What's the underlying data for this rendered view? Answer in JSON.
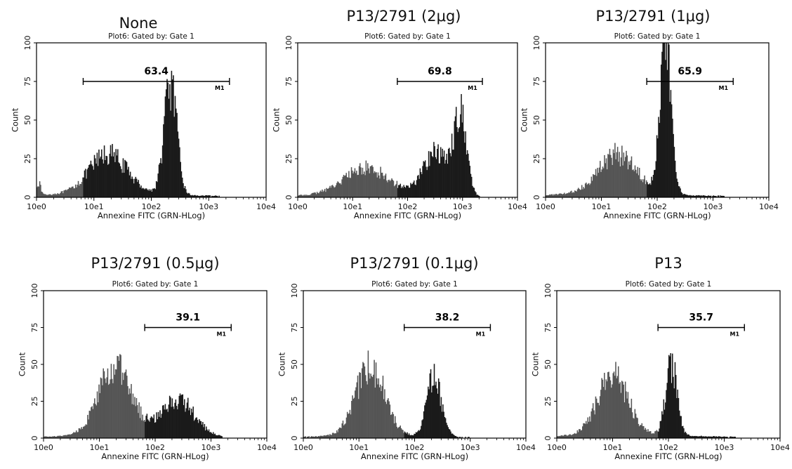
{
  "figure": {
    "colors": {
      "ungated": "#555555",
      "gated": "#1a1a1a",
      "axis": "#000000",
      "background": "#ffffff"
    }
  },
  "chart_data": [
    {
      "type": "histogram",
      "title": "None",
      "subtitle": "Plot6:  Gated by: Gate 1",
      "xlabel": "Annexine FITC (GRN-HLog)",
      "ylabel": "Count",
      "x_scale": "log10",
      "xlim": [
        1,
        10000
      ],
      "ylim": [
        0,
        100
      ],
      "xticks": [
        "10e0",
        "10e1",
        "10e2",
        "10e3",
        "10e4"
      ],
      "yticks": [
        "0",
        "25",
        "50",
        "75",
        "100"
      ],
      "gate": {
        "name": "M1",
        "range": [
          6.5,
          2300
        ],
        "percent": "63.4"
      },
      "peaks": [
        {
          "center_log10": 0.03,
          "width_log10": 0.04,
          "height": 8
        },
        {
          "center_log10": 1.25,
          "width_log10": 0.33,
          "height": 25
        },
        {
          "center_log10": 2.33,
          "width_log10": 0.11,
          "height": 72
        }
      ],
      "baseline": 3
    },
    {
      "type": "histogram",
      "title": "P13/2791 (2μg)",
      "subtitle": "Plot6:  Gated by: Gate 1",
      "xlabel": "Annexine FITC (GRN-HLog)",
      "ylabel": "Count",
      "x_scale": "log10",
      "xlim": [
        1,
        10000
      ],
      "ylim": [
        0,
        100
      ],
      "xticks": [
        "10e0",
        "10e1",
        "10e2",
        "10e3",
        "10e4"
      ],
      "yticks": [
        "0",
        "25",
        "50",
        "75",
        "100"
      ],
      "gate": {
        "name": "M1",
        "range": [
          65,
          2300
        ],
        "percent": "69.8"
      },
      "peaks": [
        {
          "center_log10": 1.25,
          "width_log10": 0.42,
          "height": 17
        },
        {
          "center_log10": 2.5,
          "width_log10": 0.22,
          "height": 28
        },
        {
          "center_log10": 2.95,
          "width_log10": 0.12,
          "height": 52
        }
      ],
      "baseline": 2
    },
    {
      "type": "histogram",
      "title": "P13/2791 (1μg)",
      "subtitle": "Plot6:  Gated by: Gate 1",
      "xlabel": "Annexine FITC (GRN-HLog)",
      "ylabel": "Count",
      "x_scale": "log10",
      "xlim": [
        1,
        10000
      ],
      "ylim": [
        0,
        100
      ],
      "xticks": [
        "10e0",
        "10e1",
        "10e2",
        "10e3",
        "10e4"
      ],
      "yticks": [
        "0",
        "25",
        "50",
        "75",
        "100"
      ],
      "gate": {
        "name": "M1",
        "range": [
          65,
          2300
        ],
        "percent": "65.9"
      },
      "peaks": [
        {
          "center_log10": 1.3,
          "width_log10": 0.35,
          "height": 25
        },
        {
          "center_log10": 2.15,
          "width_log10": 0.1,
          "height": 97
        }
      ],
      "baseline": 3
    },
    {
      "type": "histogram",
      "title": "P13/2791 (0.5μg)",
      "subtitle": "Plot6:  Gated by: Gate 1",
      "xlabel": "Annexine FITC (GRN-HLog)",
      "ylabel": "Count",
      "x_scale": "log10",
      "xlim": [
        1,
        10000
      ],
      "ylim": [
        0,
        100
      ],
      "xticks": [
        "10e0",
        "10e1",
        "10e2",
        "10e3",
        "10e4"
      ],
      "yticks": [
        "0",
        "25",
        "50",
        "75",
        "100"
      ],
      "gate": {
        "name": "M1",
        "range": [
          65,
          2300
        ],
        "percent": "39.1"
      },
      "peaks": [
        {
          "center_log10": 1.28,
          "width_log10": 0.3,
          "height": 45
        },
        {
          "center_log10": 2.4,
          "width_log10": 0.3,
          "height": 25
        }
      ],
      "baseline": 2
    },
    {
      "type": "histogram",
      "title": "P13/2791 (0.1μg)",
      "subtitle": "Plot6:  Gated by: Gate 1",
      "xlabel": "Annexine FITC (GRN-HLog)",
      "ylabel": "Count",
      "x_scale": "log10",
      "xlim": [
        1,
        10000
      ],
      "ylim": [
        0,
        100
      ],
      "xticks": [
        "10e0",
        "10e1",
        "10e2",
        "10e3",
        "10e4"
      ],
      "yticks": [
        "0",
        "25",
        "50",
        "75",
        "100"
      ],
      "gate": {
        "name": "M1",
        "range": [
          65,
          2300
        ],
        "percent": "38.2"
      },
      "peaks": [
        {
          "center_log10": 1.2,
          "width_log10": 0.26,
          "height": 47
        },
        {
          "center_log10": 2.35,
          "width_log10": 0.13,
          "height": 40
        }
      ],
      "baseline": 2
    },
    {
      "type": "histogram",
      "title": "P13",
      "subtitle": "Plot6:  Gated by: Gate 1",
      "xlabel": "Annexine FITC (GRN-HLog)",
      "ylabel": "Count",
      "x_scale": "log10",
      "xlim": [
        1,
        10000
      ],
      "ylim": [
        0,
        100
      ],
      "xticks": [
        "10e0",
        "10e1",
        "10e2",
        "10e3",
        "10e4"
      ],
      "yticks": [
        "0",
        "25",
        "50",
        "75",
        "100"
      ],
      "gate": {
        "name": "M1",
        "range": [
          65,
          2300
        ],
        "percent": "35.7"
      },
      "peaks": [
        {
          "center_log10": 1.0,
          "width_log10": 0.27,
          "height": 40
        },
        {
          "center_log10": 2.05,
          "width_log10": 0.1,
          "height": 50
        }
      ],
      "baseline": 3
    }
  ]
}
